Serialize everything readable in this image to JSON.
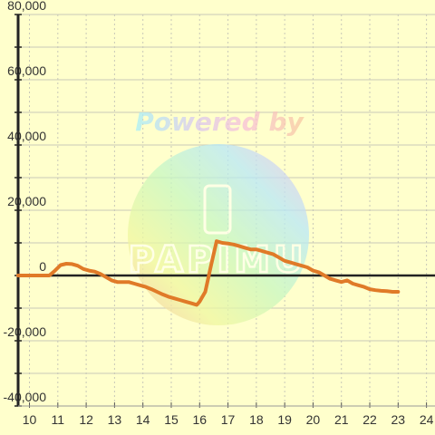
{
  "chart_data": {
    "type": "line",
    "title": "",
    "xlabel": "",
    "ylabel": "",
    "xlim": [
      9.6,
      24.3
    ],
    "ylim": [
      -40000,
      80000
    ],
    "x_ticks": [
      10,
      11,
      12,
      13,
      14,
      15,
      16,
      17,
      18,
      19,
      20,
      21,
      22,
      23,
      24
    ],
    "x_tick_labels": [
      "10",
      "11",
      "12",
      "13",
      "14",
      "15",
      "16",
      "17",
      "18",
      "19",
      "20",
      "21",
      "22",
      "23",
      "24"
    ],
    "y_ticks": [
      80000,
      60000,
      40000,
      20000,
      0,
      -20000,
      -40000
    ],
    "y_tick_labels": [
      "80,000",
      "60,000",
      "40,000",
      "20,000",
      "0",
      "-20,000",
      "-40,000"
    ],
    "grid": true,
    "series": [
      {
        "color": "#e07a28",
        "x": [
          9.6,
          10.0,
          10.5,
          10.7,
          10.9,
          11.1,
          11.3,
          11.5,
          11.7,
          11.9,
          12.1,
          12.3,
          12.5,
          12.7,
          12.9,
          13.1,
          13.3,
          13.5,
          13.7,
          13.9,
          14.1,
          14.3,
          14.5,
          14.7,
          14.9,
          15.1,
          15.3,
          15.5,
          15.7,
          15.9,
          16.0,
          16.2,
          16.4,
          16.6,
          16.8,
          17.0,
          17.2,
          17.4,
          17.6,
          17.8,
          18.0,
          18.2,
          18.4,
          18.6,
          18.8,
          19.0,
          19.2,
          19.4,
          19.6,
          19.8,
          20.0,
          20.2,
          20.4,
          20.6,
          20.8,
          21.0,
          21.2,
          21.4,
          21.6,
          21.8,
          22.0,
          22.2,
          22.4,
          22.6,
          22.8,
          23.0
        ],
        "values": [
          0,
          0,
          0,
          0,
          1500,
          3200,
          3600,
          3500,
          3000,
          2000,
          1500,
          1200,
          500,
          -500,
          -1500,
          -2000,
          -2000,
          -2000,
          -2500,
          -3000,
          -3500,
          -4200,
          -5000,
          -5800,
          -6500,
          -7000,
          -7500,
          -8000,
          -8500,
          -9000,
          -8000,
          -5000,
          3000,
          10500,
          10000,
          9800,
          9500,
          9000,
          8500,
          8000,
          8000,
          7500,
          7000,
          6500,
          5500,
          4500,
          4000,
          3500,
          3000,
          2500,
          1500,
          1000,
          0,
          -1000,
          -1500,
          -2000,
          -1500,
          -2500,
          -3000,
          -3500,
          -4200,
          -4500,
          -4700,
          -4800,
          -5000,
          -5000
        ]
      }
    ]
  },
  "watermark": {
    "powered_text": "Powered by",
    "brand_letters": "PAPIMU"
  }
}
